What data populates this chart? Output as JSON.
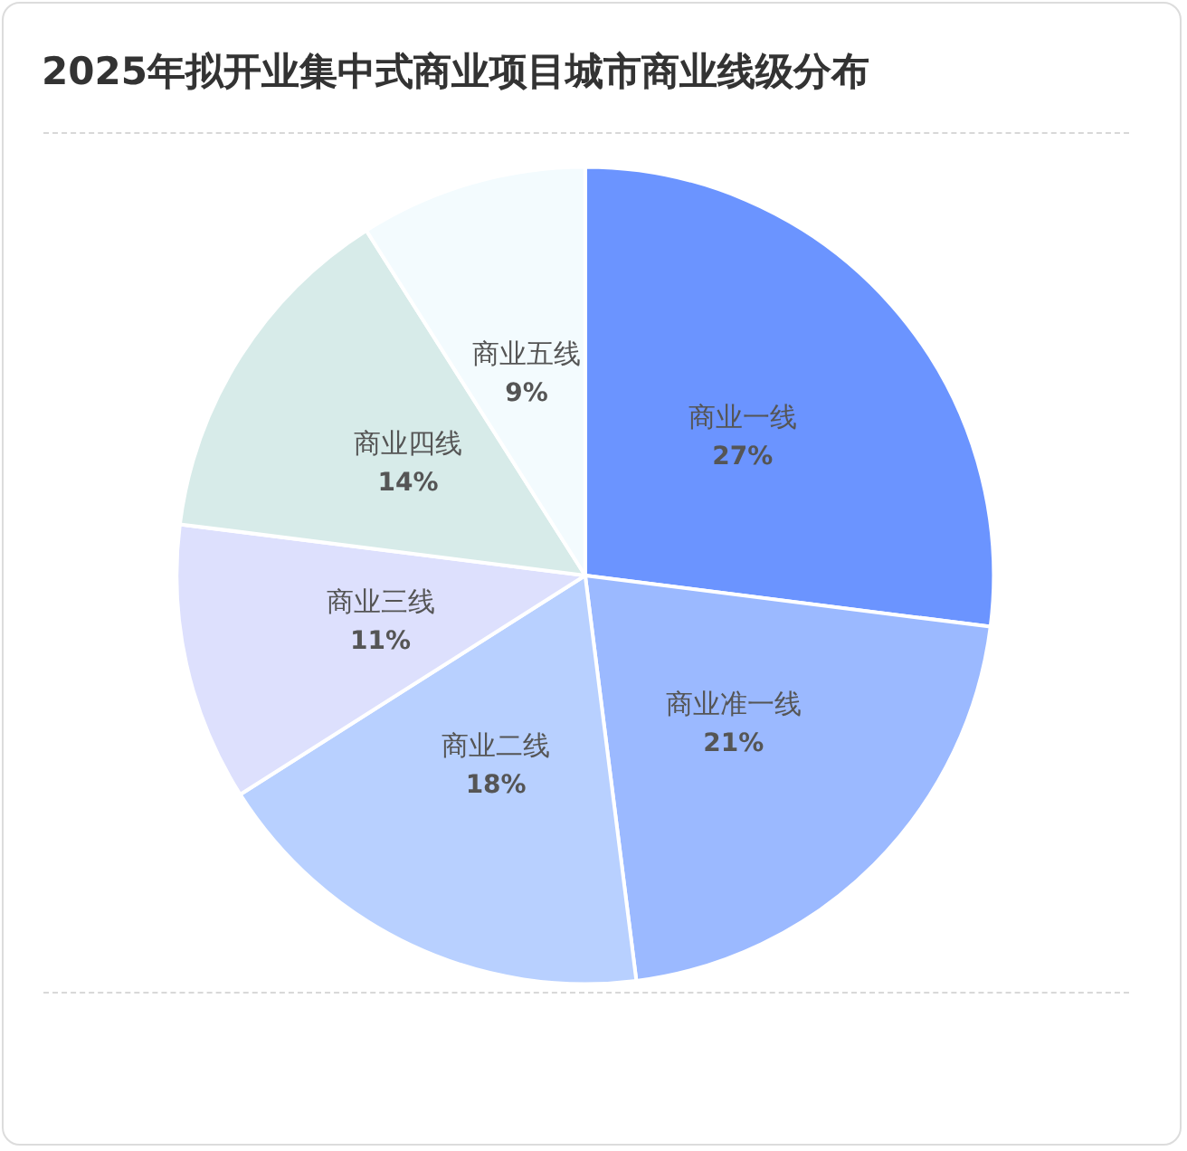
{
  "chart_data": {
    "type": "pie",
    "title": "2025年拟开业集中式商业项目城市商业线级分布",
    "categories": [
      "商业一线",
      "商业准一线",
      "商业二线",
      "商业三线",
      "商业四线",
      "商业五线"
    ],
    "values": [
      27,
      21,
      18,
      11,
      14,
      9
    ],
    "value_labels": [
      "27%",
      "21%",
      "18%",
      "11%",
      "14%",
      "9%"
    ],
    "colors": [
      "#6b94ff",
      "#9bb9ff",
      "#b8d0ff",
      "#dde0fd",
      "#d7ebe9",
      "#f3fbfe"
    ],
    "legend": false
  }
}
